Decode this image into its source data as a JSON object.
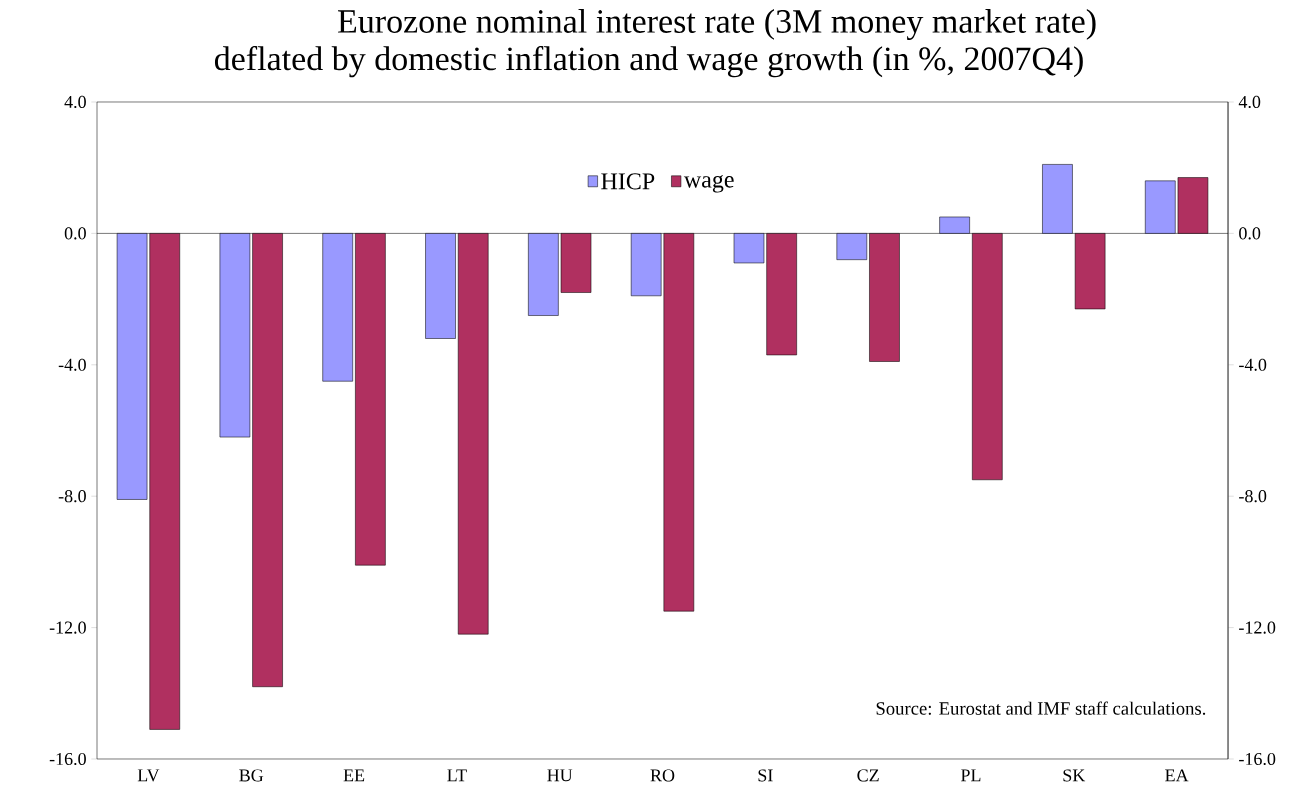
{
  "chart_data": {
    "type": "bar",
    "title": "Eurozone nominal interest rate (3M money market rate)",
    "subtitle": "deflated by domestic inflation and wage growth (in %, 2007Q4)",
    "categories": [
      "LV",
      "BG",
      "EE",
      "LT",
      "HU",
      "RO",
      "SI",
      "CZ",
      "PL",
      "SK",
      "EA"
    ],
    "series": [
      {
        "name": "HICP",
        "color": "#9999ff",
        "values": [
          -8.1,
          -6.2,
          -4.5,
          -3.2,
          -2.5,
          -1.9,
          -0.9,
          -0.8,
          0.5,
          2.1,
          1.6
        ]
      },
      {
        "name": "wage",
        "color": "#b03060",
        "values": [
          -15.1,
          -13.8,
          -10.1,
          -12.2,
          -1.8,
          -11.5,
          -3.7,
          -3.9,
          -7.5,
          -2.3,
          1.7
        ]
      }
    ],
    "ylim": [
      -16,
      4
    ],
    "yticks": [
      {
        "value": -16,
        "label": "-16.0"
      },
      {
        "value": -12,
        "label": "-12.0"
      },
      {
        "value": -8,
        "label": "-8.0"
      },
      {
        "value": -4,
        "label": "-4.0"
      },
      {
        "value": 0,
        "label": "0.0"
      },
      {
        "value": 4,
        "label": "4.0"
      }
    ],
    "y2lim": [
      -16,
      4
    ],
    "y2ticks": [
      {
        "value": -16,
        "label": "-16.0"
      },
      {
        "value": -12,
        "label": "-12.0"
      },
      {
        "value": -8,
        "label": "-8.0"
      },
      {
        "value": -4,
        "label": "-4.0"
      },
      {
        "value": 0,
        "label": "0.0"
      },
      {
        "value": 4,
        "label": "4.0"
      }
    ],
    "legend": "top",
    "annotations": [
      "Source: Eurostat and IMF staff calculations."
    ]
  }
}
